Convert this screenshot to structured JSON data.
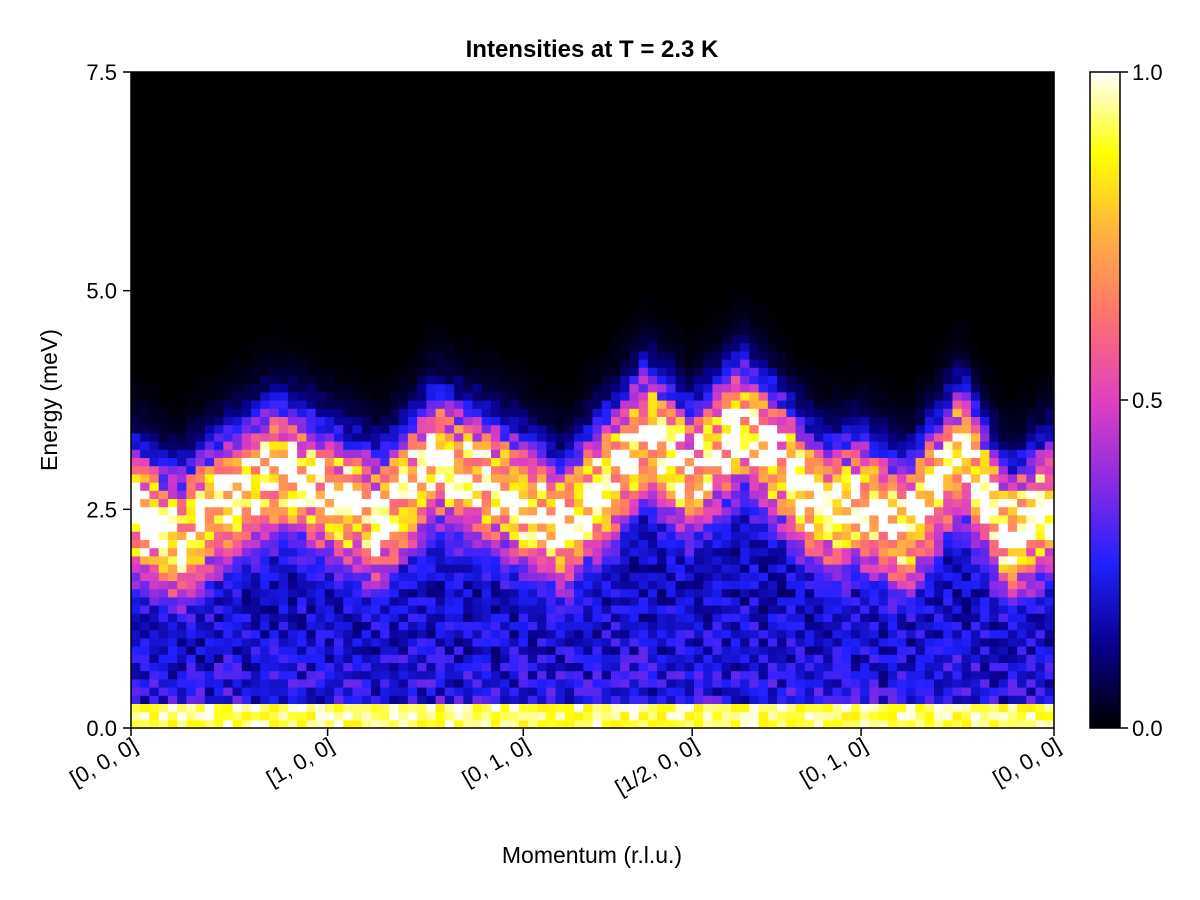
{
  "chart_data": {
    "type": "heatmap",
    "title": "Intensities at T = 2.3 K",
    "xlabel": "Momentum (r.l.u.)",
    "ylabel": "Energy (meV)",
    "x_ticks": [
      "[0, 0, 0]",
      "[1, 0, 0]",
      "[0, 1, 0]",
      "[1/2, 0, 0]",
      "[0, 1, 0]",
      "[0, 0, 0]"
    ],
    "x_tick_fractions": [
      0.0,
      0.213,
      0.425,
      0.608,
      0.791,
      1.0
    ],
    "y_ticks": [
      0.0,
      2.5,
      5.0,
      7.5
    ],
    "ylim": [
      0.0,
      7.5
    ],
    "colorbar": {
      "ticks": [
        0.0,
        0.5,
        1.0
      ],
      "range": [
        0.0,
        1.0
      ]
    },
    "colormap": [
      "#000000",
      "#08008c",
      "#2020ff",
      "#8a2be2",
      "#e040c0",
      "#ff7070",
      "#ffb040",
      "#ffff00",
      "#ffffff"
    ],
    "grid": false,
    "ridge": {
      "description_points_fraction_x": [
        0.0,
        0.05,
        0.1,
        0.16,
        0.213,
        0.27,
        0.33,
        0.39,
        0.425,
        0.47,
        0.52,
        0.56,
        0.608,
        0.66,
        0.7,
        0.75,
        0.791,
        0.84,
        0.9,
        0.95,
        1.0
      ],
      "energy_meV": [
        2.5,
        2.2,
        2.6,
        3.0,
        2.7,
        2.4,
        3.1,
        2.8,
        2.6,
        2.3,
        2.9,
        3.4,
        2.9,
        3.5,
        3.1,
        2.5,
        2.6,
        2.3,
        3.2,
        2.2,
        2.6
      ]
    },
    "elastic_line_energy_meV": 0.15
  }
}
